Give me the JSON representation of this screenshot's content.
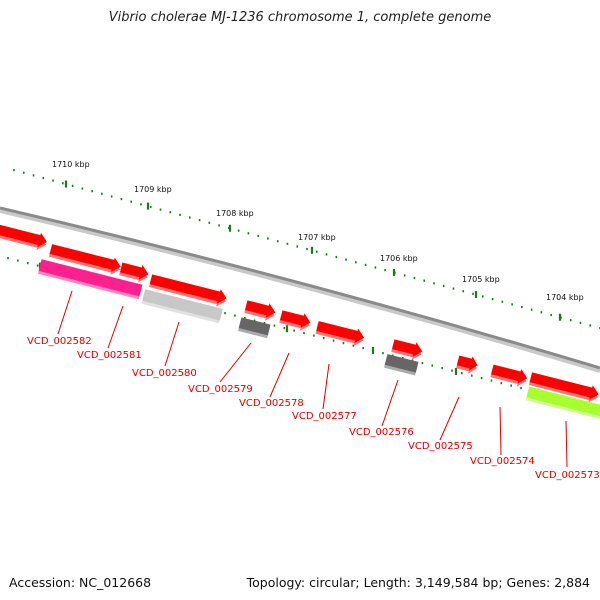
{
  "title": "Vibrio cholerae MJ-1236 chromosome 1, complete genome",
  "footer": {
    "accession": "Accession: NC_012668",
    "topology": "Topology: circular; Length: 3,149,584 bp; Genes: 2,884"
  },
  "colors": {
    "backbone": "#8a8a8a",
    "tick": "#1a7a1a",
    "gene": "#ff0000",
    "gene_pink": "#ff2090",
    "gene_lightgray": "#c8c8c8",
    "gene_darkgray": "#666666",
    "gene_lime": "#a8ff30",
    "label": "#e00000"
  },
  "kbp_labels": [
    "1710 kbp",
    "1709 kbp",
    "1708 kbp",
    "1707 kbp",
    "1706 kbp",
    "1705 kbp",
    "1704 kbp"
  ],
  "gene_labels": [
    "VCD_002582",
    "VCD_002581",
    "VCD_002580",
    "VCD_002579",
    "VCD_002578",
    "VCD_002577",
    "VCD_002576",
    "VCD_002575",
    "VCD_002574",
    "VCD_002573"
  ]
}
